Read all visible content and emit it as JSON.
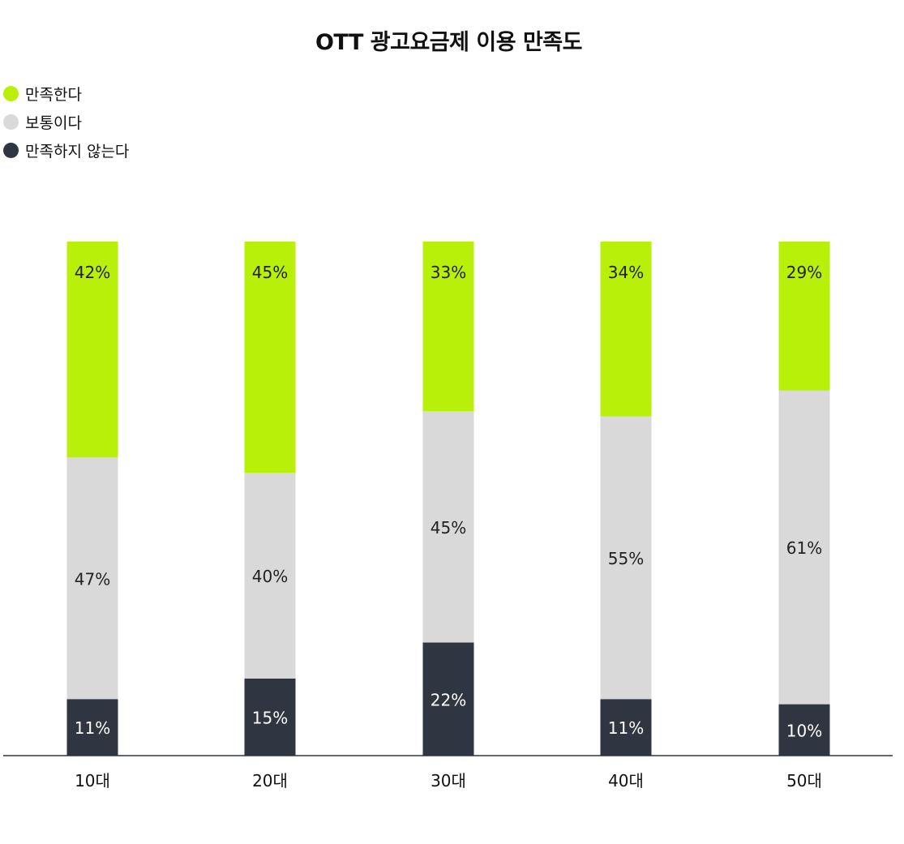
{
  "chart_data": {
    "type": "bar",
    "stacked": true,
    "title": "OTT 광고요금제 이용 만족도",
    "categories": [
      "10대",
      "20대",
      "30대",
      "40대",
      "50대"
    ],
    "series": [
      {
        "name": "만족하지 않는다",
        "color": "#2f3541",
        "label_color": "#ffffff",
        "values": [
          11,
          15,
          22,
          11,
          10
        ],
        "labels": [
          "11%",
          "15%",
          "22%",
          "11%",
          "10%"
        ]
      },
      {
        "name": "보통이다",
        "color": "#d9d9d9",
        "label_color": "#222222",
        "values": [
          47,
          40,
          45,
          55,
          61
        ],
        "labels": [
          "47%",
          "40%",
          "45%",
          "55%",
          "61%"
        ]
      },
      {
        "name": "만족한다",
        "color": "#b8f00a",
        "label_color": "#222222",
        "values": [
          42,
          45,
          33,
          34,
          29
        ],
        "labels": [
          "42%",
          "45%",
          "33%",
          "34%",
          "29%"
        ]
      }
    ],
    "legend": [
      "만족한다",
      "보통이다",
      "만족하지 않는다"
    ],
    "legend_colors": [
      "#b8f00a",
      "#d9d9d9",
      "#2f3541"
    ],
    "legend_position": "top-left",
    "ylim": [
      0,
      100
    ],
    "grid": false
  }
}
